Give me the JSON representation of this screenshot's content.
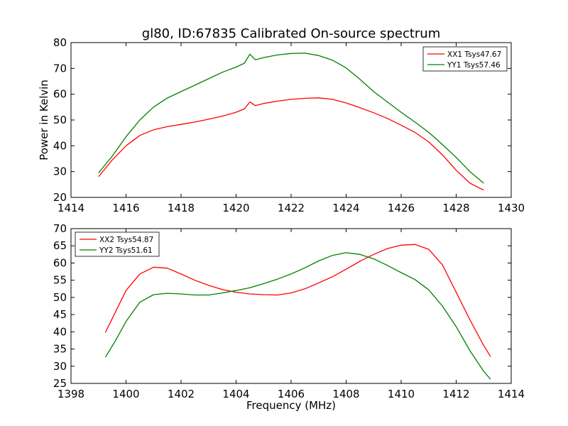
{
  "figure": {
    "title": "gl80, ID:67835 Calibrated On-source spectrum"
  },
  "chart_data": [
    {
      "type": "line",
      "title": "gl80, ID:67835 Calibrated On-source spectrum",
      "xlabel": "",
      "ylabel": "Power in Kelvin",
      "xlim": [
        1414,
        1430
      ],
      "ylim": [
        20,
        80
      ],
      "xticks": [
        1414,
        1416,
        1418,
        1420,
        1422,
        1424,
        1426,
        1428,
        1430
      ],
      "yticks": [
        20,
        30,
        40,
        50,
        60,
        70,
        80
      ],
      "grid": false,
      "legend": "top-right",
      "series": [
        {
          "name": "XX1 Tsys47.67",
          "color": "#ff0000",
          "x": [
            1415.0,
            1415.5,
            1416.0,
            1416.5,
            1417.0,
            1417.5,
            1418.0,
            1418.5,
            1419.0,
            1419.5,
            1420.0,
            1420.3,
            1420.5,
            1420.7,
            1421.0,
            1421.5,
            1422.0,
            1422.5,
            1423.0,
            1423.5,
            1424.0,
            1424.5,
            1425.0,
            1425.5,
            1426.0,
            1426.5,
            1427.0,
            1427.5,
            1428.0,
            1428.5,
            1429.0
          ],
          "y": [
            28.0,
            34.5,
            40.0,
            44.0,
            46.2,
            47.4,
            48.3,
            49.2,
            50.3,
            51.5,
            53.0,
            54.3,
            57.0,
            55.6,
            56.4,
            57.3,
            58.0,
            58.4,
            58.6,
            58.0,
            56.6,
            54.8,
            52.8,
            50.6,
            48.0,
            45.2,
            41.5,
            36.5,
            30.5,
            25.5,
            22.8
          ]
        },
        {
          "name": "YY1 Tsys57.46",
          "color": "#008000",
          "x": [
            1415.0,
            1415.5,
            1416.0,
            1416.5,
            1417.0,
            1417.5,
            1418.0,
            1418.5,
            1419.0,
            1419.5,
            1420.0,
            1420.3,
            1420.5,
            1420.7,
            1421.0,
            1421.5,
            1422.0,
            1422.5,
            1423.0,
            1423.5,
            1424.0,
            1424.5,
            1425.0,
            1425.5,
            1426.0,
            1426.5,
            1427.0,
            1427.5,
            1428.0,
            1428.5,
            1429.0
          ],
          "y": [
            29.5,
            36.0,
            43.5,
            50.0,
            55.0,
            58.5,
            61.0,
            63.5,
            66.0,
            68.5,
            70.5,
            72.0,
            75.5,
            73.3,
            74.2,
            75.2,
            75.8,
            75.9,
            75.0,
            73.2,
            70.2,
            65.8,
            61.0,
            57.0,
            53.0,
            49.2,
            45.2,
            40.5,
            35.5,
            30.0,
            25.5
          ]
        }
      ]
    },
    {
      "type": "line",
      "title": "",
      "xlabel": "Frequency (MHz)",
      "ylabel": "",
      "xlim": [
        1398,
        1414
      ],
      "ylim": [
        25,
        70
      ],
      "xticks": [
        1398,
        1400,
        1402,
        1404,
        1406,
        1408,
        1410,
        1412,
        1414
      ],
      "yticks": [
        25,
        30,
        35,
        40,
        45,
        50,
        55,
        60,
        65,
        70
      ],
      "grid": false,
      "legend": "top-left",
      "series": [
        {
          "name": "XX2 Tsys54.87",
          "color": "#ff0000",
          "x": [
            1399.25,
            1399.6,
            1400.0,
            1400.5,
            1401.0,
            1401.5,
            1402.0,
            1402.5,
            1403.0,
            1403.5,
            1404.0,
            1404.5,
            1405.0,
            1405.5,
            1406.0,
            1406.5,
            1407.0,
            1407.5,
            1408.0,
            1408.5,
            1409.0,
            1409.5,
            1410.0,
            1410.5,
            1411.0,
            1411.5,
            1412.0,
            1412.5,
            1413.0,
            1413.25
          ],
          "y": [
            39.8,
            45.5,
            52.0,
            56.8,
            58.8,
            58.5,
            56.8,
            55.0,
            53.5,
            52.3,
            51.5,
            51.0,
            50.8,
            50.7,
            51.3,
            52.5,
            54.2,
            56.0,
            58.2,
            60.5,
            62.5,
            64.2,
            65.2,
            65.4,
            64.0,
            59.5,
            51.5,
            43.5,
            36.0,
            32.8
          ]
        },
        {
          "name": "YY2 Tsys51.61",
          "color": "#008000",
          "x": [
            1399.25,
            1399.6,
            1400.0,
            1400.5,
            1401.0,
            1401.5,
            1402.0,
            1402.5,
            1403.0,
            1403.5,
            1404.0,
            1404.5,
            1405.0,
            1405.5,
            1406.0,
            1406.5,
            1407.0,
            1407.5,
            1408.0,
            1408.5,
            1409.0,
            1409.5,
            1410.0,
            1410.5,
            1411.0,
            1411.5,
            1412.0,
            1412.5,
            1413.0,
            1413.25
          ],
          "y": [
            32.6,
            37.2,
            43.0,
            48.6,
            50.8,
            51.2,
            51.0,
            50.7,
            50.7,
            51.3,
            52.0,
            52.8,
            54.0,
            55.3,
            56.8,
            58.6,
            60.6,
            62.2,
            63.0,
            62.5,
            61.2,
            59.3,
            57.2,
            55.2,
            52.2,
            47.5,
            41.5,
            34.5,
            28.5,
            26.2
          ]
        }
      ]
    }
  ]
}
